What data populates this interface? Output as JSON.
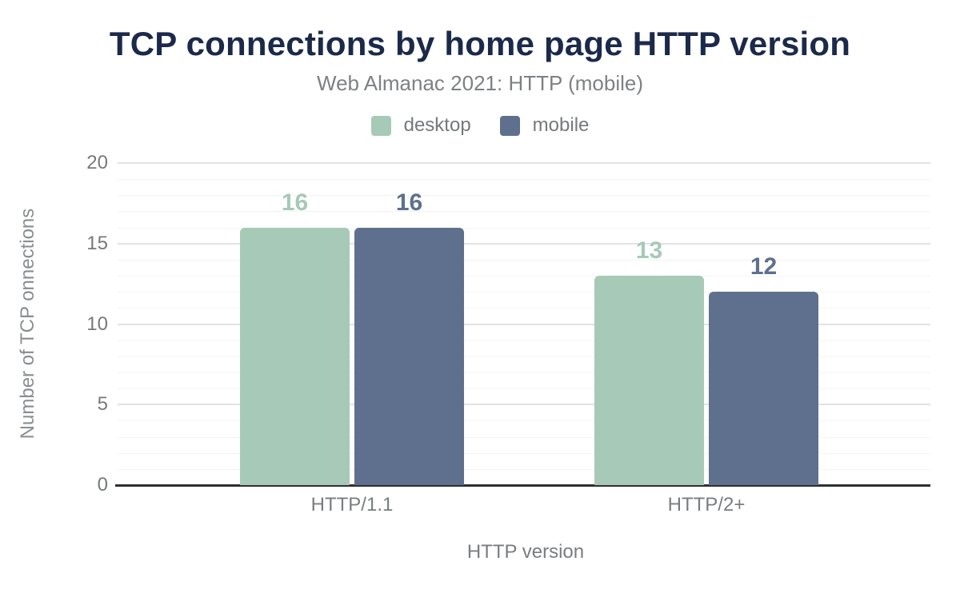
{
  "header": {
    "title": "TCP connections by home page HTTP version",
    "subtitle": "Web Almanac 2021: HTTP (mobile)"
  },
  "legend": [
    {
      "label": "desktop",
      "color": "#a6c9b8"
    },
    {
      "label": "mobile",
      "color": "#5e708e"
    }
  ],
  "chart_data": {
    "type": "bar",
    "title": "TCP connections by home page HTTP version",
    "subtitle": "Web Almanac 2021: HTTP (mobile)",
    "categories": [
      "HTTP/1.1",
      "HTTP/2+"
    ],
    "series": [
      {
        "name": "desktop",
        "color": "#a6c9b8",
        "values": [
          16,
          13
        ]
      },
      {
        "name": "mobile",
        "color": "#5e708e",
        "values": [
          16,
          12
        ]
      }
    ],
    "data_labels": [
      [
        "16",
        "13"
      ],
      [
        "16",
        "12"
      ]
    ],
    "xlabel": "HTTP version",
    "ylabel": "Number of TCP onnections",
    "ylim": [
      0,
      20
    ],
    "yticks": [
      0,
      5,
      10,
      15,
      20
    ],
    "minor_grid_step": 1,
    "grid": true,
    "legend_position": "top"
  },
  "colors": {
    "title": "#1b2a4a",
    "axis_text": "#76797b",
    "major_grid": "#e4e2e1",
    "minor_grid": "#f6f3f2",
    "baseline": "#2e2f31"
  }
}
